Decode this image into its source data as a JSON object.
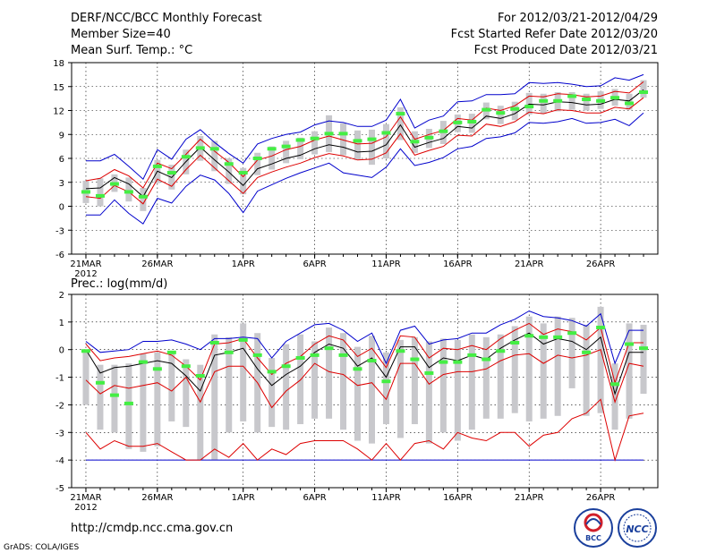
{
  "header": {
    "title": "DERF/NCC/BCC Monthly Forecast",
    "member_size": "Member Size=40",
    "variable": "Mean Surf. Temp.: °C",
    "period": "For 2012/03/21-2012/04/29",
    "fcst_started": "Fcst Started Refer Date 2012/03/20",
    "fcst_produced": "Fcst Produced Date 2012/03/21"
  },
  "footer": {
    "url": "http://cmdp.ncc.cma.gov.cn",
    "credit": "GrADS: COLA/IGES",
    "logo_bcc": "BCC",
    "logo_ncc": "NCC"
  },
  "colors": {
    "max_min": "#0000cc",
    "pct": "#dd0000",
    "mean": "#000000",
    "median": "#44ee44",
    "box": "#c8c8cc"
  },
  "chart_data": [
    {
      "type": "box",
      "title": "Mean Surf. Temp.: °C",
      "ylabel": "°C",
      "ylim": [
        -6,
        18
      ],
      "yticks": [
        -6,
        -3,
        0,
        3,
        6,
        9,
        12,
        15,
        18
      ],
      "x_labels": [
        {
          "day": 1,
          "text": "21MAR",
          "sub": "2012"
        },
        {
          "day": 6,
          "text": "26MAR"
        },
        {
          "day": 12,
          "text": "1APR"
        },
        {
          "day": 17,
          "text": "6APR"
        },
        {
          "day": 22,
          "text": "11APR"
        },
        {
          "day": 27,
          "text": "16APR"
        },
        {
          "day": 32,
          "text": "21APR"
        },
        {
          "day": 37,
          "text": "26APR"
        }
      ],
      "days": 40,
      "median": [
        1.8,
        1.3,
        2.8,
        1.8,
        1.2,
        5,
        4.2,
        6.2,
        7.3,
        7.2,
        5.3,
        4.2,
        6,
        7.2,
        7.5,
        8.3,
        8.5,
        9.1,
        9.1,
        8.2,
        8.4,
        9.2,
        11.6,
        8.1,
        8.6,
        9.4,
        10.5,
        10.6,
        12.1,
        11.7,
        12.2,
        12.5,
        13.2,
        13.2,
        13.8,
        13.4,
        13.2,
        13.6,
        12.9,
        14.3
      ],
      "mean": [
        2.2,
        2.3,
        3.6,
        2.8,
        1.2,
        4.4,
        3.6,
        5.6,
        7.4,
        5.8,
        4.3,
        2.6,
        4.7,
        5.3,
        6.0,
        6.4,
        7.2,
        7.7,
        7.4,
        6.8,
        6.9,
        7.7,
        10.2,
        7.4,
        8.0,
        8.5,
        10.0,
        9.8,
        11.3,
        11.0,
        11.6,
        12.8,
        12.7,
        13.1,
        13.0,
        12.7,
        12.8,
        13.4,
        13.2,
        14.6
      ],
      "pct_upper": [
        3.2,
        3.5,
        4.6,
        3.8,
        2.3,
        5.4,
        4.7,
        6.5,
        8.4,
        6.9,
        5.5,
        3.7,
        5.8,
        6.3,
        7.1,
        7.5,
        8.3,
        8.8,
        8.3,
        7.8,
        7.9,
        8.7,
        11.2,
        8.4,
        9.0,
        9.5,
        11.0,
        10.8,
        12.3,
        12.0,
        12.6,
        13.8,
        13.7,
        14.1,
        14.0,
        13.7,
        13.8,
        14.4,
        14.2,
        15.6
      ],
      "pct_lower": [
        1.2,
        1.0,
        2.6,
        1.8,
        0.3,
        3.4,
        2.5,
        4.6,
        6.4,
        4.8,
        3.2,
        1.6,
        3.6,
        4.3,
        4.9,
        5.4,
        6.1,
        6.6,
        6.3,
        5.8,
        5.9,
        6.7,
        9.1,
        6.4,
        7.0,
        7.5,
        8.9,
        8.8,
        10.3,
        10.0,
        10.6,
        11.8,
        11.6,
        12.1,
        12.0,
        11.7,
        11.7,
        12.4,
        12.2,
        13.6
      ],
      "max": [
        5.7,
        5.7,
        6.5,
        5.0,
        3.4,
        7.1,
        5.9,
        8.4,
        9.6,
        8.0,
        6.6,
        5.4,
        7.8,
        8.5,
        9.0,
        9.3,
        10.2,
        10.7,
        10.5,
        10.0,
        10.0,
        10.8,
        13.4,
        9.8,
        10.8,
        11.3,
        13.1,
        13.2,
        14.0,
        14.0,
        14.1,
        15.5,
        15.4,
        15.5,
        15.3,
        15.0,
        15.1,
        16.1,
        15.8,
        16.5
      ],
      "min": [
        -1.1,
        -1.1,
        0.8,
        -0.9,
        -2.2,
        1.0,
        0.4,
        2.5,
        3.9,
        3.3,
        1.6,
        -0.8,
        1.9,
        2.7,
        3.5,
        4.2,
        4.8,
        5.4,
        4.2,
        3.9,
        3.6,
        4.9,
        7.2,
        5.1,
        5.5,
        6.1,
        7.2,
        7.5,
        8.5,
        8.7,
        9.2,
        10.5,
        10.4,
        10.6,
        11.0,
        10.4,
        10.5,
        10.9,
        10.1,
        11.7
      ],
      "box_high": [
        3.2,
        3.5,
        4.0,
        3.6,
        2.3,
        5.8,
        5.2,
        7.1,
        8.8,
        8.2,
        6.0,
        4.8,
        6.7,
        7.5,
        8.2,
        8.6,
        9.4,
        11.4,
        10.4,
        9.5,
        9.6,
        10.3,
        12.4,
        9.4,
        9.7,
        10.7,
        11.5,
        11.6,
        13.0,
        12.6,
        13.1,
        14.2,
        14.1,
        14.3,
        14.3,
        14.1,
        14.4,
        14.7,
        14.1,
        15.8
      ],
      "box_low": [
        0.4,
        0.0,
        1.8,
        0.6,
        -0.6,
        2.9,
        2.1,
        4.0,
        5.7,
        4.4,
        2.8,
        1.5,
        3.9,
        4.6,
        5.4,
        5.9,
        6.5,
        6.8,
        6.4,
        5.8,
        5.2,
        6.0,
        8.3,
        6.7,
        7.3,
        7.8,
        9.3,
        9.2,
        10.9,
        10.3,
        10.8,
        11.5,
        11.6,
        11.9,
        12.1,
        12.0,
        12.2,
        12.6,
        12.1,
        13.6
      ]
    },
    {
      "type": "box",
      "title": "Prec.: log(mm/d)",
      "ylabel": "log(mm/d)",
      "ylim": [
        -5,
        2
      ],
      "yticks": [
        -5,
        -4,
        -3,
        -2,
        -1,
        0,
        1,
        2
      ],
      "x_labels": [
        {
          "day": 1,
          "text": "21MAR",
          "sub": "2012"
        },
        {
          "day": 6,
          "text": "26MAR"
        },
        {
          "day": 12,
          "text": "1APR"
        },
        {
          "day": 17,
          "text": "6APR"
        },
        {
          "day": 22,
          "text": "11APR"
        },
        {
          "day": 27,
          "text": "16APR"
        },
        {
          "day": 32,
          "text": "21APR"
        },
        {
          "day": 37,
          "text": "26APR"
        }
      ],
      "days": 40,
      "median": [
        -0.05,
        -1.2,
        -1.65,
        -1.95,
        -0.45,
        -0.7,
        -0.1,
        -0.6,
        -0.95,
        0.25,
        -0.1,
        0.35,
        -0.2,
        -0.8,
        -0.6,
        -0.3,
        -0.2,
        0.05,
        -0.2,
        -0.7,
        -0.4,
        -1.15,
        -0.05,
        -0.35,
        -0.85,
        -0.45,
        -0.45,
        -0.2,
        -0.35,
        -0.05,
        0.25,
        0.5,
        0.45,
        0.45,
        0.6,
        -0.1,
        0.8,
        -1.25,
        0.2,
        0.05
      ],
      "mean": [
        0.0,
        -0.85,
        -0.65,
        -0.6,
        -0.5,
        -0.4,
        -0.5,
        -0.95,
        -1.5,
        -0.2,
        -0.1,
        0.05,
        -0.7,
        -1.3,
        -0.9,
        -0.6,
        -0.1,
        0.2,
        0.05,
        -0.6,
        -0.3,
        -1.0,
        0.1,
        0.1,
        -0.65,
        -0.3,
        -0.4,
        -0.2,
        -0.35,
        0.05,
        0.35,
        0.6,
        0.2,
        0.4,
        0.3,
        0.0,
        0.45,
        -1.6,
        -0.1,
        -0.1
      ],
      "pct_upper": [
        0.2,
        -0.4,
        -0.3,
        -0.25,
        -0.15,
        -0.05,
        -0.2,
        -0.6,
        -1.1,
        0.2,
        0.25,
        0.4,
        -0.3,
        -0.9,
        -0.5,
        -0.25,
        0.2,
        0.5,
        0.35,
        -0.25,
        0.05,
        -0.65,
        0.5,
        0.45,
        -0.3,
        0.05,
        0.0,
        0.15,
        0.0,
        0.4,
        0.7,
        0.95,
        0.55,
        0.75,
        0.65,
        0.35,
        0.8,
        -1.2,
        0.25,
        0.25
      ],
      "pct_lower": [
        -1.1,
        -1.6,
        -1.3,
        -1.4,
        -1.3,
        -1.2,
        -1.5,
        -1.0,
        -1.9,
        -0.8,
        -0.6,
        -0.6,
        -1.2,
        -2.1,
        -1.5,
        -1.1,
        -0.5,
        -0.8,
        -0.9,
        -1.3,
        -1.2,
        -1.8,
        -0.5,
        -0.5,
        -1.25,
        -0.9,
        -0.8,
        -0.8,
        -0.7,
        -0.4,
        -0.2,
        -0.15,
        -0.5,
        -0.2,
        -0.3,
        -0.2,
        0.0,
        -1.9,
        -0.5,
        -0.6
      ],
      "pct_low2": [
        -3.0,
        -3.6,
        -3.3,
        -3.5,
        -3.5,
        -3.4,
        -3.7,
        -4.0,
        -4.0,
        -3.6,
        -3.9,
        -3.4,
        -4.0,
        -3.6,
        -3.8,
        -3.4,
        -3.3,
        -3.3,
        -3.3,
        -3.6,
        -4.0,
        -3.4,
        -4.0,
        -3.4,
        -3.3,
        -3.6,
        -3.0,
        -3.2,
        -3.3,
        -3.0,
        -3.0,
        -3.5,
        -3.1,
        -3.0,
        -2.5,
        -2.3,
        -1.8,
        -4.0,
        -2.4,
        -2.3
      ],
      "max": [
        0.3,
        -0.1,
        -0.05,
        0.0,
        0.3,
        0.3,
        0.35,
        0.2,
        0.0,
        0.4,
        0.4,
        0.45,
        0.4,
        -0.3,
        0.3,
        0.6,
        0.9,
        0.95,
        0.7,
        0.3,
        0.6,
        -0.5,
        0.7,
        0.85,
        0.2,
        0.35,
        0.4,
        0.6,
        0.6,
        0.9,
        1.1,
        1.4,
        1.2,
        1.15,
        1.05,
        0.85,
        1.3,
        -0.5,
        0.7,
        0.7
      ],
      "min": [
        -4,
        -4,
        -4,
        -4,
        -4,
        -4,
        -4,
        -4,
        -4,
        -4,
        -4,
        -4,
        -4,
        -4,
        -4,
        -4,
        -4,
        -4,
        -4,
        -4,
        -4,
        -4,
        -4,
        -4,
        -4,
        -4,
        -4,
        -4,
        -4,
        -4,
        -4,
        -4,
        -4,
        -4,
        -4,
        -4,
        -4,
        -4,
        -4,
        -4
      ],
      "box_high": [
        0.0,
        -0.55,
        -0.55,
        -0.5,
        -0.15,
        -0.1,
        -0.05,
        -0.35,
        -0.55,
        0.55,
        0.45,
        0.95,
        0.6,
        -0.3,
        0.2,
        0.55,
        0.3,
        0.8,
        0.6,
        0.1,
        0.5,
        -0.1,
        0.35,
        0.45,
        0.3,
        0.4,
        0.35,
        0.55,
        0.45,
        0.55,
        0.85,
        1.2,
        0.95,
        1.2,
        1.15,
        0.9,
        1.55,
        -0.5,
        0.95,
        0.9
      ],
      "box_low": [
        -2.0,
        -2.9,
        -3.0,
        -3.6,
        -3.7,
        -3.5,
        -2.6,
        -2.8,
        -4.0,
        -4.0,
        -3.0,
        -2.6,
        -3.0,
        -2.8,
        -2.9,
        -2.7,
        -2.5,
        -2.5,
        -2.9,
        -3.3,
        -3.4,
        -2.7,
        -3.2,
        -2.7,
        -3.4,
        -3.0,
        -3.3,
        -2.9,
        -2.5,
        -2.5,
        -2.3,
        -2.6,
        -2.5,
        -2.4,
        -1.4,
        -2.4,
        -2.3,
        -2.9,
        -2.5,
        -1.6
      ]
    }
  ]
}
